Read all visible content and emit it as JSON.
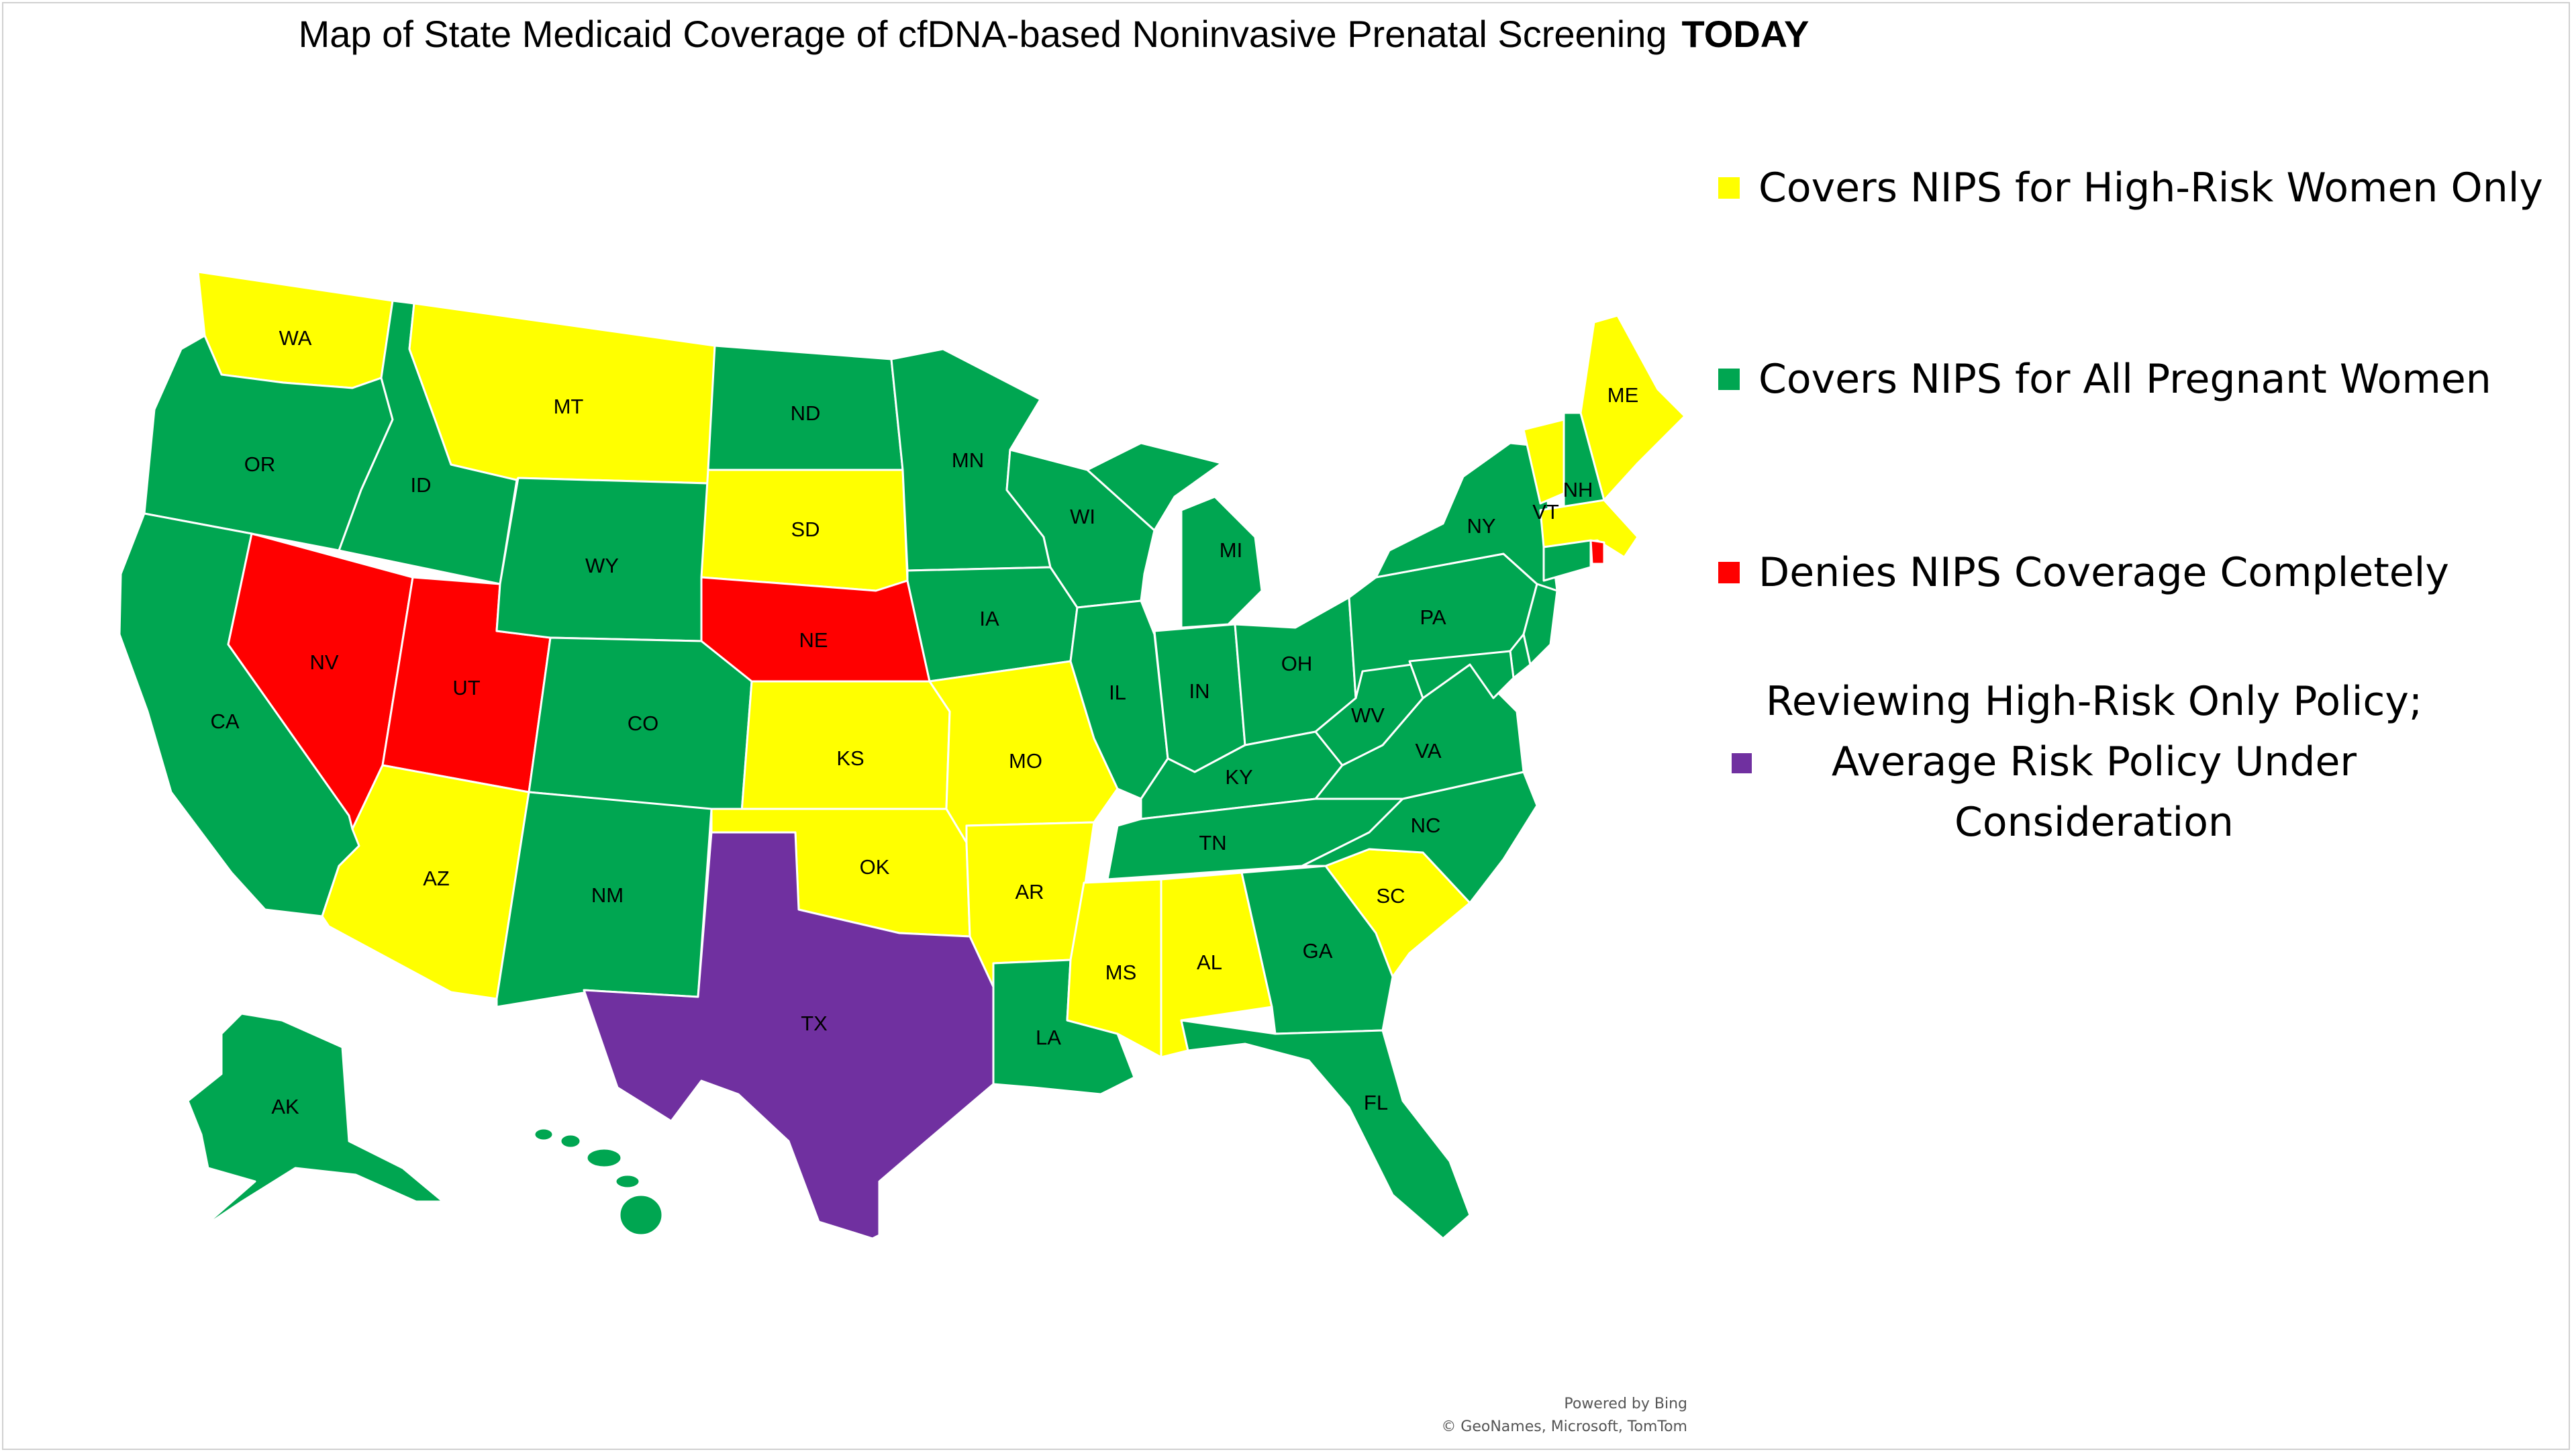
{
  "title": {
    "text": "Map of State Medicaid Coverage of cfDNA-based Noninvasive Prenatal Screening",
    "emphasis": "TODAY"
  },
  "legend": [
    {
      "label": "Covers NIPS for High-Risk Women Only",
      "color": "#ffff00",
      "category": "high-risk-only"
    },
    {
      "label": "Covers NIPS for All Pregnant Women",
      "color": "#00a651",
      "category": "all-pregnant"
    },
    {
      "label": "Denies NIPS Coverage Completely",
      "color": "#ff0000",
      "category": "denies"
    },
    {
      "label_lines": [
        "Reviewing High-Risk Only Policy;",
        "Average Risk Policy Under",
        "Consideration"
      ],
      "color": "#7030a0",
      "category": "reviewing"
    }
  ],
  "states": [
    {
      "code": "WA",
      "category": "high-risk-only"
    },
    {
      "code": "OR",
      "category": "all-pregnant"
    },
    {
      "code": "CA",
      "category": "all-pregnant"
    },
    {
      "code": "ID",
      "category": "all-pregnant"
    },
    {
      "code": "NV",
      "category": "denies"
    },
    {
      "code": "UT",
      "category": "denies"
    },
    {
      "code": "AZ",
      "category": "high-risk-only"
    },
    {
      "code": "MT",
      "category": "high-risk-only"
    },
    {
      "code": "WY",
      "category": "all-pregnant"
    },
    {
      "code": "CO",
      "category": "all-pregnant"
    },
    {
      "code": "NM",
      "category": "all-pregnant"
    },
    {
      "code": "ND",
      "category": "all-pregnant"
    },
    {
      "code": "SD",
      "category": "high-risk-only"
    },
    {
      "code": "NE",
      "category": "denies"
    },
    {
      "code": "KS",
      "category": "high-risk-only"
    },
    {
      "code": "OK",
      "category": "high-risk-only"
    },
    {
      "code": "TX",
      "category": "reviewing"
    },
    {
      "code": "MN",
      "category": "all-pregnant"
    },
    {
      "code": "IA",
      "category": "all-pregnant"
    },
    {
      "code": "MO",
      "category": "high-risk-only"
    },
    {
      "code": "AR",
      "category": "high-risk-only"
    },
    {
      "code": "LA",
      "category": "all-pregnant"
    },
    {
      "code": "WI",
      "category": "all-pregnant"
    },
    {
      "code": "IL",
      "category": "all-pregnant"
    },
    {
      "code": "MI",
      "category": "all-pregnant"
    },
    {
      "code": "IN",
      "category": "all-pregnant"
    },
    {
      "code": "OH",
      "category": "all-pregnant"
    },
    {
      "code": "KY",
      "category": "all-pregnant"
    },
    {
      "code": "TN",
      "category": "all-pregnant"
    },
    {
      "code": "MS",
      "category": "high-risk-only"
    },
    {
      "code": "AL",
      "category": "high-risk-only"
    },
    {
      "code": "GA",
      "category": "all-pregnant"
    },
    {
      "code": "FL",
      "category": "all-pregnant"
    },
    {
      "code": "SC",
      "category": "high-risk-only"
    },
    {
      "code": "NC",
      "category": "all-pregnant"
    },
    {
      "code": "VA",
      "category": "all-pregnant"
    },
    {
      "code": "WV",
      "category": "all-pregnant"
    },
    {
      "code": "PA",
      "category": "all-pregnant"
    },
    {
      "code": "NY",
      "category": "all-pregnant"
    },
    {
      "code": "VT",
      "category": "high-risk-only"
    },
    {
      "code": "NH",
      "category": "all-pregnant"
    },
    {
      "code": "ME",
      "category": "high-risk-only"
    },
    {
      "code": "MA",
      "category": "high-risk-only"
    },
    {
      "code": "RI",
      "category": "denies"
    },
    {
      "code": "CT",
      "category": "all-pregnant"
    },
    {
      "code": "NJ",
      "category": "all-pregnant"
    },
    {
      "code": "DE",
      "category": "all-pregnant"
    },
    {
      "code": "MD",
      "category": "all-pregnant"
    },
    {
      "code": "AK",
      "category": "all-pregnant"
    },
    {
      "code": "HI",
      "category": "all-pregnant"
    }
  ],
  "labels": [
    "WA",
    "OR",
    "CA",
    "ID",
    "NV",
    "UT",
    "AZ",
    "MT",
    "WY",
    "CO",
    "NM",
    "ND",
    "SD",
    "NE",
    "KS",
    "OK",
    "TX",
    "MN",
    "IA",
    "MO",
    "AR",
    "LA",
    "WI",
    "IL",
    "MI",
    "IN",
    "OH",
    "KY",
    "TN",
    "MS",
    "AL",
    "GA",
    "FL",
    "SC",
    "NC",
    "VA",
    "WV",
    "PA",
    "NY",
    "VT",
    "NH",
    "ME",
    "AK"
  ],
  "credit": {
    "line1": "Powered by Bing",
    "line2": "© GeoNames, Microsoft, TomTom"
  }
}
